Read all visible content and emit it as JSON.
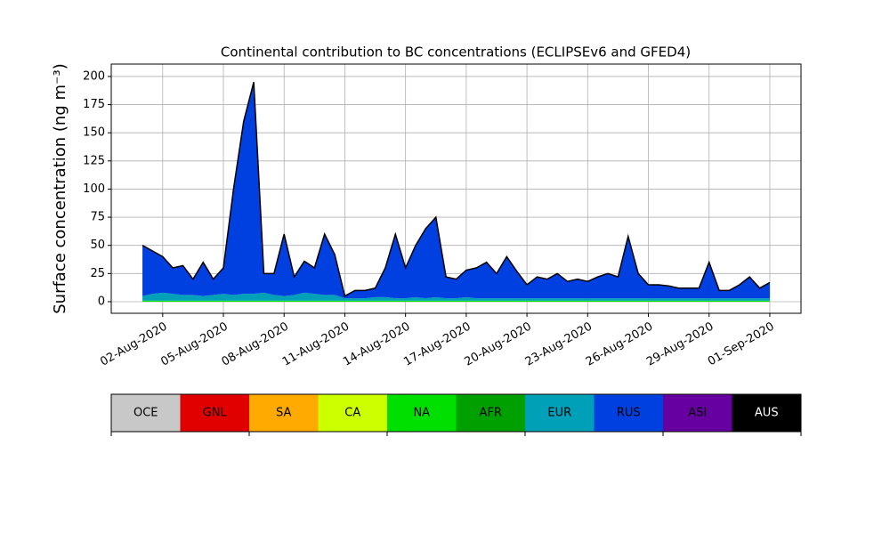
{
  "chart_data": {
    "type": "stacked_area",
    "title": "Continental contribution to BC concentrations (ECLIPSEv6 and GFED4)",
    "y_label": "Surface concentration (ng m⁻³)",
    "x": [
      "2020-08-01T00:00",
      "2020-08-01T12:00",
      "2020-08-02T00:00",
      "2020-08-02T12:00",
      "2020-08-03T00:00",
      "2020-08-03T12:00",
      "2020-08-04T00:00",
      "2020-08-04T12:00",
      "2020-08-05T00:00",
      "2020-08-05T12:00",
      "2020-08-06T00:00",
      "2020-08-06T12:00",
      "2020-08-07T00:00",
      "2020-08-07T12:00",
      "2020-08-08T00:00",
      "2020-08-08T12:00",
      "2020-08-09T00:00",
      "2020-08-09T12:00",
      "2020-08-10T00:00",
      "2020-08-10T12:00",
      "2020-08-11T00:00",
      "2020-08-11T12:00",
      "2020-08-12T00:00",
      "2020-08-12T12:00",
      "2020-08-13T00:00",
      "2020-08-13T12:00",
      "2020-08-14T00:00",
      "2020-08-14T12:00",
      "2020-08-15T00:00",
      "2020-08-15T12:00",
      "2020-08-16T00:00",
      "2020-08-16T12:00",
      "2020-08-17T00:00",
      "2020-08-17T12:00",
      "2020-08-18T00:00",
      "2020-08-18T12:00",
      "2020-08-19T00:00",
      "2020-08-19T12:00",
      "2020-08-20T00:00",
      "2020-08-20T12:00",
      "2020-08-21T00:00",
      "2020-08-21T12:00",
      "2020-08-22T00:00",
      "2020-08-22T12:00",
      "2020-08-23T00:00",
      "2020-08-23T12:00",
      "2020-08-24T00:00",
      "2020-08-24T12:00",
      "2020-08-25T00:00",
      "2020-08-25T12:00",
      "2020-08-26T00:00",
      "2020-08-26T12:00",
      "2020-08-27T00:00",
      "2020-08-27T12:00",
      "2020-08-28T00:00",
      "2020-08-28T12:00",
      "2020-08-29T00:00",
      "2020-08-29T12:00",
      "2020-08-30T00:00",
      "2020-08-30T12:00",
      "2020-08-31T00:00",
      "2020-08-31T12:00",
      "2020-09-01T00:00"
    ],
    "series": [
      {
        "name": "NA",
        "color": "#00e000",
        "values": [
          1,
          1,
          1,
          1,
          1,
          1,
          1,
          1,
          1,
          1,
          1,
          1,
          1,
          1,
          1,
          1,
          1,
          1,
          1,
          1,
          1,
          1,
          1,
          1,
          1,
          1,
          1,
          1,
          1,
          1,
          1,
          1,
          1,
          1,
          1,
          1,
          1,
          1,
          1,
          1,
          1,
          1,
          1,
          1,
          1,
          1,
          1,
          1,
          1,
          1,
          1,
          1,
          1,
          1,
          1,
          1,
          1,
          1,
          1,
          1,
          1,
          1,
          1
        ]
      },
      {
        "name": "EUR",
        "color": "#00a0b8",
        "values": [
          4,
          6,
          7,
          6,
          5,
          5,
          4,
          5,
          6,
          5,
          6,
          6,
          7,
          5,
          4,
          5,
          7,
          6,
          5,
          5,
          2,
          2,
          2,
          3,
          3,
          2,
          2,
          3,
          2,
          3,
          2,
          2,
          3,
          2,
          2,
          2,
          2,
          2,
          2,
          2,
          2,
          2,
          2,
          2,
          2,
          2,
          2,
          2,
          2,
          2,
          2,
          2,
          2,
          2,
          2,
          2,
          2,
          2,
          2,
          2,
          2,
          2,
          2
        ]
      },
      {
        "name": "RUS",
        "color": "#0040e0",
        "values": [
          45,
          38,
          32,
          23,
          26,
          14,
          30,
          14,
          23,
          94,
          153,
          188,
          17,
          19,
          55,
          16,
          28,
          23,
          54,
          36,
          2,
          7,
          7,
          8,
          26,
          57,
          27,
          46,
          62,
          71,
          19,
          17,
          24,
          27,
          32,
          22,
          37,
          24,
          12,
          19,
          17,
          22,
          15,
          17,
          15,
          19,
          22,
          19,
          55,
          22,
          12,
          12,
          11,
          9,
          9,
          9,
          32,
          7,
          7,
          12,
          19,
          9,
          14
        ]
      }
    ],
    "xlim": [
      "2020-07-30T11:00",
      "2020-09-02T13:00"
    ],
    "xticks": [
      {
        "value": "2020-08-02T00:00",
        "label": "02-Aug-2020"
      },
      {
        "value": "2020-08-05T00:00",
        "label": "05-Aug-2020"
      },
      {
        "value": "2020-08-08T00:00",
        "label": "08-Aug-2020"
      },
      {
        "value": "2020-08-11T00:00",
        "label": "11-Aug-2020"
      },
      {
        "value": "2020-08-14T00:00",
        "label": "14-Aug-2020"
      },
      {
        "value": "2020-08-17T00:00",
        "label": "17-Aug-2020"
      },
      {
        "value": "2020-08-20T00:00",
        "label": "20-Aug-2020"
      },
      {
        "value": "2020-08-23T00:00",
        "label": "23-Aug-2020"
      },
      {
        "value": "2020-08-26T00:00",
        "label": "26-Aug-2020"
      },
      {
        "value": "2020-08-29T00:00",
        "label": "29-Aug-2020"
      },
      {
        "value": "2020-09-01T00:00",
        "label": "01-Sep-2020"
      }
    ],
    "ylim": [
      -10.3,
      211
    ],
    "yticks": [
      0,
      25,
      50,
      75,
      100,
      125,
      150,
      175,
      200
    ],
    "grid": true,
    "colorbar": {
      "labels": [
        "OCE",
        "GNL",
        "SA",
        "CA",
        "NA",
        "AFR",
        "EUR",
        "RUS",
        "ASI",
        "AUS"
      ],
      "colors": [
        "#c8c8c8",
        "#e00000",
        "#ffaa00",
        "#ccff00",
        "#00e000",
        "#00a000",
        "#00a0b8",
        "#0040e0",
        "#6600a0",
        "#000000"
      ]
    }
  }
}
